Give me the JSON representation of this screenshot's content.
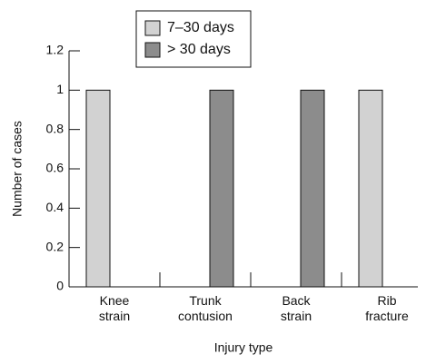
{
  "chart_data": {
    "type": "bar",
    "categories": [
      "Knee strain",
      "Trunk contusion",
      "Back strain",
      "Rib fracture"
    ],
    "series": [
      {
        "name": "7–30 days",
        "color": "#d2d2d2",
        "values": [
          1,
          0,
          0,
          1
        ]
      },
      {
        "name": "> 30 days",
        "color": "#8c8c8c",
        "values": [
          0,
          1,
          1,
          0
        ]
      }
    ],
    "xlabel": "Injury type",
    "ylabel": "Number of cases",
    "ylim": [
      0,
      1.2
    ],
    "yticks": [
      0,
      0.2,
      0.4,
      0.6,
      0.8,
      1,
      1.2
    ]
  }
}
